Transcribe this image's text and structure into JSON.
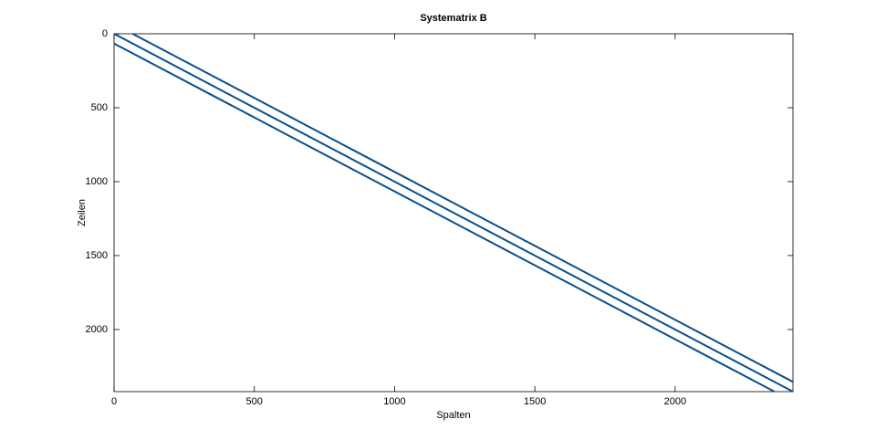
{
  "chart_data": {
    "type": "line",
    "title": "Systematrix B",
    "xlabel": "Spalten",
    "ylabel": "Zeilen",
    "xlim": [
      0,
      2420
    ],
    "ylim": [
      0,
      2420
    ],
    "yreverse": true,
    "xticks": [
      0,
      500,
      1000,
      1500,
      2000
    ],
    "yticks": [
      0,
      500,
      1000,
      1500,
      2000
    ],
    "grid": false,
    "color": "#0b4f8c",
    "series": [
      {
        "x": [
          66,
          2420
        ],
        "values": [
          0,
          2354
        ]
      },
      {
        "x": [
          0,
          2420
        ],
        "values": [
          0,
          2420
        ]
      },
      {
        "x": [
          0,
          2354
        ],
        "values": [
          66,
          2420
        ]
      }
    ]
  }
}
